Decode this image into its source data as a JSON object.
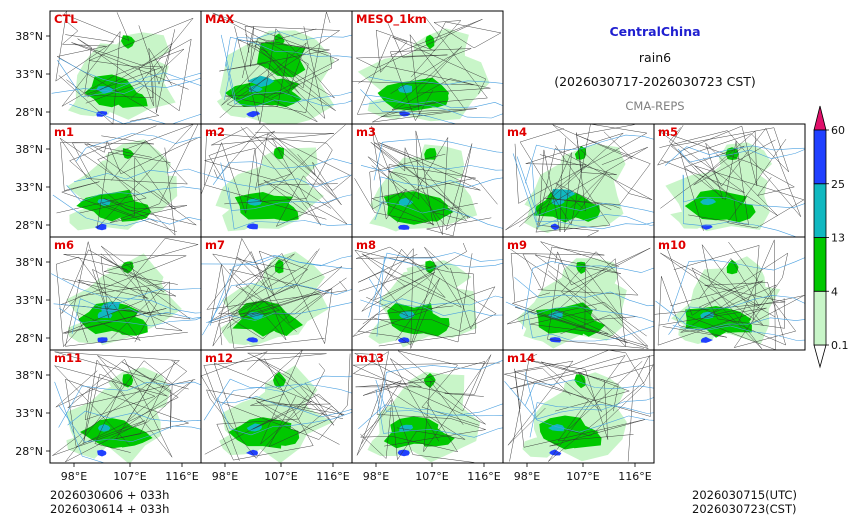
{
  "header": {
    "region": "CentralChina",
    "variable": "rain6",
    "period": "(2026030717-2026030723 CST)",
    "system": "CMA-REPS"
  },
  "panels": [
    {
      "label": "CTL"
    },
    {
      "label": "MAX"
    },
    {
      "label": "MESO_1km"
    },
    {
      "label": "m1"
    },
    {
      "label": "m2"
    },
    {
      "label": "m3"
    },
    {
      "label": "m4"
    },
    {
      "label": "m5"
    },
    {
      "label": "m6"
    },
    {
      "label": "m7"
    },
    {
      "label": "m8"
    },
    {
      "label": "m9"
    },
    {
      "label": "m10"
    },
    {
      "label": "m11"
    },
    {
      "label": "m12"
    },
    {
      "label": "m13"
    },
    {
      "label": "m14"
    }
  ],
  "axes": {
    "lat_labels": [
      "38°N",
      "33°N",
      "28°N"
    ],
    "lon_labels": [
      "98°E",
      "107°E",
      "116°E"
    ]
  },
  "colorbar": {
    "levels": [
      "0.1",
      "4",
      "13",
      "25",
      "60"
    ],
    "colors": [
      "#ffffff",
      "#c8f5c8",
      "#00c800",
      "#10b8c0",
      "#2040ff",
      "#e0106a"
    ]
  },
  "footer": {
    "init_utc": "2026030606  +  033h",
    "init_cst": "2026030614  +  033h",
    "valid_utc": "2026030715(UTC)",
    "valid_cst": "2026030723(CST)"
  },
  "colors": {
    "label": "#e00000",
    "light_rain": "#c8f5c8",
    "moderate_rain": "#00c800",
    "heavy_rain": "#10b8c0",
    "very_heavy_rain": "#2040ff",
    "river": "#4aa0e0"
  }
}
